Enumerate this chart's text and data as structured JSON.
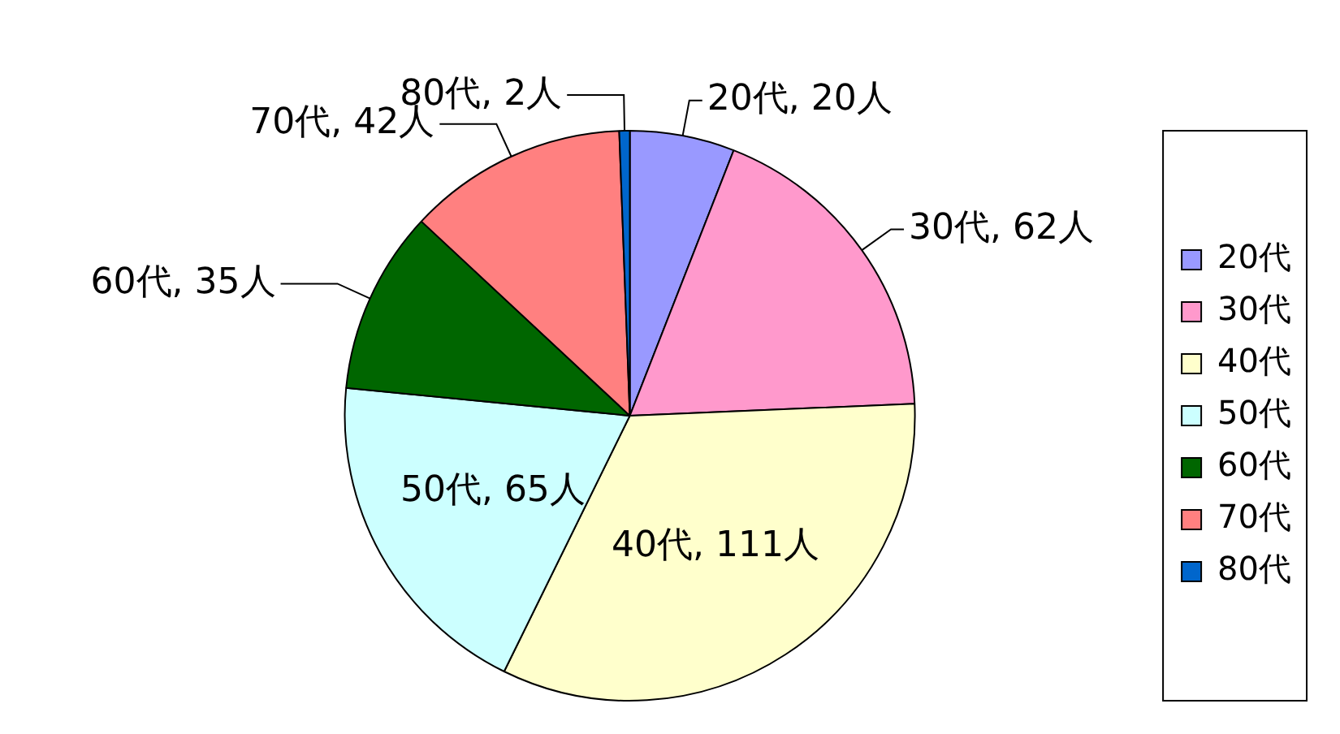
{
  "chart_data": {
    "type": "pie",
    "categories": [
      "20代",
      "30代",
      "40代",
      "50代",
      "60代",
      "70代",
      "80代"
    ],
    "values": [
      20,
      62,
      111,
      65,
      35,
      42,
      2
    ],
    "colors": [
      "#9999ff",
      "#ff99cc",
      "#ffffcc",
      "#ccffff",
      "#006600",
      "#ff8080",
      "#0066cc"
    ],
    "value_labels": [
      "20代, 20人",
      "30代, 62人",
      "40代, 111人",
      "50代, 65人",
      "60代, 35人",
      "70代, 42人",
      "80代, 2人"
    ],
    "legend": "right"
  }
}
